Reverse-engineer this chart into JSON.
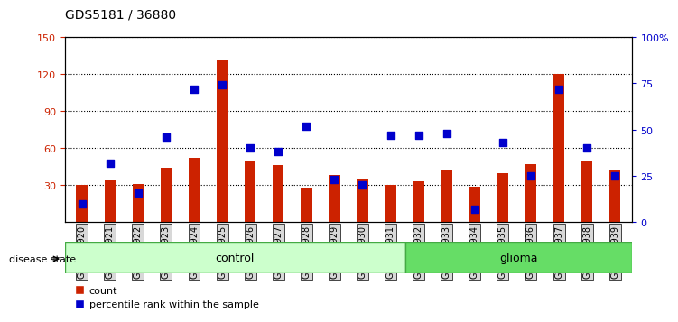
{
  "title": "GDS5181 / 36880",
  "samples": [
    "GSM769920",
    "GSM769921",
    "GSM769922",
    "GSM769923",
    "GSM769924",
    "GSM769925",
    "GSM769926",
    "GSM769927",
    "GSM769928",
    "GSM769929",
    "GSM769930",
    "GSM769931",
    "GSM769932",
    "GSM769933",
    "GSM769934",
    "GSM769935",
    "GSM769936",
    "GSM769937",
    "GSM769938",
    "GSM769939"
  ],
  "count_values": [
    30,
    34,
    31,
    44,
    52,
    132,
    50,
    46,
    28,
    38,
    35,
    30,
    33,
    42,
    29,
    40,
    47,
    120,
    50,
    42
  ],
  "percentile_values": [
    10,
    32,
    16,
    46,
    72,
    74,
    40,
    38,
    52,
    23,
    20,
    47,
    47,
    48,
    7,
    43,
    25,
    72,
    40,
    25
  ],
  "n_control": 12,
  "n_glioma": 8,
  "ylim_left": [
    0,
    150
  ],
  "ylim_right": [
    0,
    100
  ],
  "yticks_left": [
    30,
    60,
    90,
    120,
    150
  ],
  "yticks_right": [
    0,
    25,
    50,
    75,
    100
  ],
  "yticks_right_labels": [
    "0",
    "25",
    "50",
    "75",
    "100%"
  ],
  "bar_color": "#cc2200",
  "dot_color": "#0000cc",
  "control_color": "#ccffcc",
  "glioma_color": "#66dd66",
  "legend_count_label": "count",
  "legend_pct_label": "percentile rank within the sample",
  "disease_state_label": "disease state",
  "control_label": "control",
  "glioma_label": "glioma"
}
